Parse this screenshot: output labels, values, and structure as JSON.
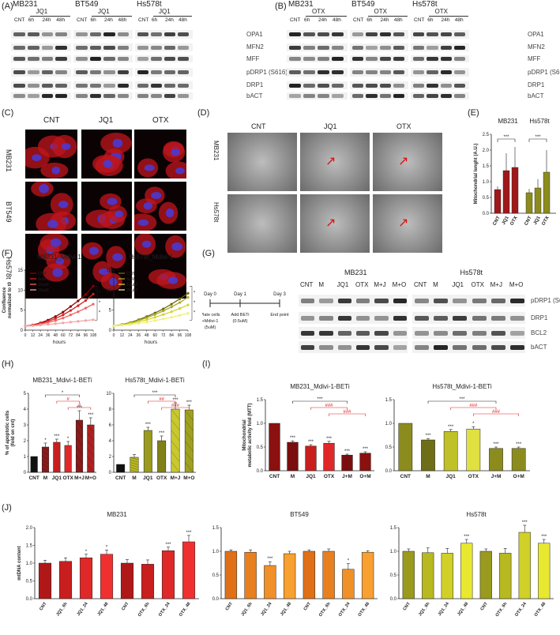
{
  "panel_labels": {
    "A": "(A)",
    "B": "(B)",
    "C": "(C)",
    "D": "(D)",
    "E": "(E)",
    "F": "(F)",
    "G": "(G)",
    "H": "(H)",
    "I": "(I)",
    "J": "(J)"
  },
  "blotA": {
    "lines": [
      "MB231",
      "BT549",
      "Hs578t"
    ],
    "drug": "JQ1",
    "lanes": [
      "CNT",
      "6h",
      "24h",
      "48h"
    ],
    "proteins": [
      "OPA1",
      "MFN2",
      "MFF",
      "pDRP1 (S616)",
      "DRP1",
      "bACT"
    ]
  },
  "blotB": {
    "lines": [
      "MB231",
      "BT549",
      "Hs578t"
    ],
    "drug": "OTX",
    "lanes": [
      "CNT",
      "6h",
      "24h",
      "48h"
    ],
    "proteins": [
      "OPA1",
      "MFN2",
      "MFF",
      "pDRP1 (S616)",
      "DRP1",
      "bACT"
    ]
  },
  "panelC": {
    "cols": [
      "CNT",
      "JQ1",
      "OTX"
    ],
    "rows": [
      "MB231",
      "BT549",
      "Hs578t"
    ]
  },
  "panelD": {
    "cols": [
      "CNT",
      "JQ1",
      "OTX"
    ],
    "rows": [
      "MB231",
      "Hs578t"
    ]
  },
  "panelG": {
    "timeline": {
      "days": [
        "Day 0",
        "Day 1",
        "Day 3"
      ],
      "notes": [
        "Plate cells\n+Mdivi-1\n(5uM)",
        "Add BETi\n(0.5uM)",
        "End point"
      ]
    },
    "lines": [
      "MB231",
      "Hs578t"
    ],
    "lanes": [
      "CNT",
      "M",
      "JQ1",
      "OTX",
      "M+J",
      "M+O"
    ],
    "proteins": [
      "pDRP1 (S616)",
      "DRP1",
      "BCL2",
      "bACT"
    ]
  },
  "chart_data": [
    {
      "id": "E",
      "type": "bar",
      "ylabel": "Mitochondrial lenght (A.U.)",
      "ylim": [
        0,
        2.5
      ],
      "yticks": [
        0.0,
        0.5,
        1.0,
        1.5,
        2.0,
        2.5
      ],
      "groups": [
        {
          "name": "MB231",
          "categories": [
            "CNT",
            "JQ1",
            "OTX"
          ],
          "values": [
            0.75,
            1.35,
            1.45
          ],
          "err": [
            0.1,
            0.55,
            0.65
          ],
          "color": "#a01818"
        },
        {
          "name": "Hs578t",
          "categories": [
            "CNT",
            "JQ1",
            "OTX"
          ],
          "values": [
            0.65,
            0.8,
            1.3
          ],
          "err": [
            0.12,
            0.28,
            0.7
          ],
          "color": "#8c8c1e"
        }
      ],
      "sig": [
        "***",
        "***"
      ]
    },
    {
      "id": "F1",
      "type": "line",
      "title": "MB231_Mdivi-1",
      "xlabel": "hours",
      "ylabel": "Confluence\nnormalized to t0",
      "x": [
        0,
        12,
        24,
        36,
        48,
        60,
        72,
        84,
        96,
        108
      ],
      "xlim": [
        0,
        108
      ],
      "ylim": [
        0,
        15
      ],
      "yticks": [
        0,
        5,
        10,
        15
      ],
      "series": [
        {
          "name": "CNT",
          "values": [
            1,
            1.3,
            1.8,
            2.5,
            3.4,
            4.5,
            5.9,
            7.3,
            8.9,
            11.0
          ],
          "color": "#8b0000"
        },
        {
          "name": "5uM",
          "values": [
            1,
            1.25,
            1.65,
            2.2,
            2.9,
            3.8,
            4.9,
            6.1,
            7.4,
            9.0
          ],
          "color": "#d62020"
        },
        {
          "name": "10uM",
          "values": [
            1,
            1.2,
            1.5,
            1.9,
            2.4,
            3.0,
            3.8,
            4.6,
            5.5,
            6.5
          ],
          "color": "#f06060"
        },
        {
          "name": "20uM",
          "values": [
            1,
            1.1,
            1.25,
            1.4,
            1.6,
            1.8,
            2.0,
            2.2,
            2.4,
            2.6
          ],
          "color": "#f4a6a6"
        }
      ],
      "sig": [
        "*",
        "*",
        "*"
      ]
    },
    {
      "id": "F2",
      "type": "line",
      "title": "Hs578t_Mdivi-1",
      "xlabel": "hours",
      "ylabel": "",
      "x": [
        0,
        12,
        24,
        36,
        48,
        60,
        72,
        84,
        96,
        108
      ],
      "xlim": [
        0,
        108
      ],
      "ylim": [
        0,
        15
      ],
      "yticks": [
        0,
        5,
        10,
        15
      ],
      "series": [
        {
          "name": "CNT",
          "values": [
            1,
            1.4,
            1.9,
            2.6,
            3.4,
            4.3,
            5.3,
            6.5,
            7.8,
            9.2
          ],
          "color": "#6b6b10"
        },
        {
          "name": "5uM",
          "values": [
            1,
            1.35,
            1.8,
            2.4,
            3.1,
            3.9,
            4.8,
            5.8,
            6.9,
            8.2
          ],
          "color": "#a8a828"
        },
        {
          "name": "10uM",
          "values": [
            1,
            1.3,
            1.65,
            2.1,
            2.6,
            3.2,
            3.9,
            4.6,
            5.4,
            6.3
          ],
          "color": "#d4d430"
        },
        {
          "name": "20uM",
          "values": [
            1,
            1.2,
            1.4,
            1.7,
            2.0,
            2.4,
            2.8,
            3.2,
            3.7,
            4.2
          ],
          "color": "#f1f07a"
        }
      ],
      "sig": [
        "*",
        "*",
        "*"
      ]
    },
    {
      "id": "H1",
      "type": "bar",
      "title": "MB231_Mdivi-1-BETi",
      "ylabel": "% of apoptotic cells\n(fold on cnt)",
      "categories": [
        "CNT",
        "M",
        "JQ1",
        "OTX",
        "M+J",
        "M+O"
      ],
      "values": [
        1.0,
        1.6,
        1.9,
        1.7,
        3.3,
        3.0
      ],
      "err": [
        0,
        0.25,
        0.2,
        0.25,
        0.6,
        0.45
      ],
      "ylim": [
        0,
        5
      ],
      "yticks": [
        0,
        1,
        2,
        3,
        4,
        5
      ],
      "sig": [
        "",
        "*",
        "***",
        "*",
        "***",
        "***"
      ],
      "brackets": [
        "*",
        "#",
        "#"
      ]
    },
    {
      "id": "H2",
      "type": "bar",
      "title": "Hs578t_Mdivi-1-BETi",
      "ylabel": "",
      "categories": [
        "CNT",
        "M",
        "JQ1",
        "OTX",
        "M+J",
        "M+O"
      ],
      "values": [
        1.0,
        1.9,
        5.3,
        4.0,
        8.0,
        7.9
      ],
      "err": [
        0,
        0.35,
        0.4,
        0.6,
        0.8,
        0.6
      ],
      "ylim": [
        0,
        10
      ],
      "yticks": [
        0,
        2,
        4,
        6,
        8,
        10
      ],
      "sig": [
        "",
        "",
        "***",
        "***",
        "***",
        "***"
      ],
      "brackets": [
        "***",
        "##",
        "###"
      ]
    },
    {
      "id": "I1",
      "type": "bar",
      "title": "MB231_Mdivi-1-BETi",
      "ylabel": "Mitochondrial\nmetabolic activity fold (MTT)",
      "categories": [
        "CNT",
        "M",
        "JQ1",
        "OTX",
        "J+M",
        "O+M"
      ],
      "values": [
        1.0,
        0.6,
        0.52,
        0.58,
        0.33,
        0.37
      ],
      "err": [
        0,
        0.03,
        0.03,
        0.04,
        0.02,
        0.03
      ],
      "ylim": [
        0,
        1.5
      ],
      "yticks": [
        0.0,
        0.5,
        1.0,
        1.5
      ],
      "sig": [
        "",
        "***",
        "***",
        "***",
        "***",
        "***"
      ],
      "brackets": [
        "***",
        "###",
        "###"
      ]
    },
    {
      "id": "I2",
      "type": "bar",
      "title": "Hs578t_Mdivi-1-BETi",
      "ylabel": "",
      "categories": [
        "CNT",
        "M",
        "JQ1",
        "OTX",
        "J+M",
        "O+M"
      ],
      "values": [
        1.0,
        0.65,
        0.83,
        0.88,
        0.47,
        0.47
      ],
      "err": [
        0,
        0.03,
        0.04,
        0.05,
        0.03,
        0.03
      ],
      "ylim": [
        0,
        1.5
      ],
      "yticks": [
        0.0,
        0.5,
        1.0,
        1.5
      ],
      "sig": [
        "",
        "***",
        "***",
        "*",
        "***",
        "***"
      ],
      "brackets": [
        "***",
        "###",
        "###"
      ]
    },
    {
      "id": "J1",
      "type": "bar",
      "title": "MB231",
      "ylabel": "mtDNA content",
      "categories": [
        "CNT",
        "JQ1_6h",
        "JQ1_24",
        "JQ1_48",
        "CNT",
        "OTX_6h",
        "OTX_24",
        "OTX_48"
      ],
      "values": [
        1.0,
        1.05,
        1.15,
        1.25,
        1.0,
        0.97,
        1.35,
        1.6
      ],
      "err": [
        0.08,
        0.1,
        0.1,
        0.12,
        0.1,
        0.12,
        0.1,
        0.18
      ],
      "ylim": [
        0,
        2.0
      ],
      "yticks": [
        0.0,
        0.5,
        1.0,
        1.5,
        2.0
      ],
      "sig": [
        "",
        "",
        "*",
        "*",
        "",
        "",
        "***",
        "***"
      ]
    },
    {
      "id": "J2",
      "type": "bar",
      "title": "BT549",
      "ylabel": "",
      "categories": [
        "CNT",
        "JQ1_6h",
        "JQ1_24",
        "JQ1_48",
        "CNT",
        "OTX_6h",
        "OTX_24",
        "OTX_48"
      ],
      "values": [
        1.0,
        0.98,
        0.7,
        0.95,
        1.0,
        1.0,
        0.62,
        0.98
      ],
      "err": [
        0.03,
        0.05,
        0.08,
        0.05,
        0.03,
        0.05,
        0.12,
        0.03
      ],
      "ylim": [
        0,
        1.5
      ],
      "yticks": [
        0.0,
        0.5,
        1.0,
        1.5
      ],
      "sig": [
        "",
        "",
        "***",
        "",
        "",
        "",
        "*",
        ""
      ]
    },
    {
      "id": "J3",
      "type": "bar",
      "title": "Hs578t",
      "ylabel": "",
      "categories": [
        "CNT",
        "JQ1_6h",
        "JQ1_24",
        "JQ1_48",
        "CNT",
        "OTX_6h",
        "OTX_24",
        "OTX_48"
      ],
      "values": [
        1.0,
        0.97,
        0.96,
        1.17,
        1.0,
        0.96,
        1.4,
        1.17
      ],
      "err": [
        0.05,
        0.1,
        0.1,
        0.08,
        0.05,
        0.1,
        0.15,
        0.08
      ],
      "ylim": [
        0,
        1.5
      ],
      "yticks": [
        0.0,
        0.5,
        1.0,
        1.5
      ],
      "sig": [
        "",
        "",
        "",
        "***",
        "",
        "",
        "***",
        "***"
      ]
    }
  ],
  "colors": {
    "mb231": "#a01818",
    "hs578t": "#8c8c1e",
    "bt549": "#e8801c",
    "blot_band": "#2a2a2a",
    "fluor_bg": "#0b0204"
  }
}
